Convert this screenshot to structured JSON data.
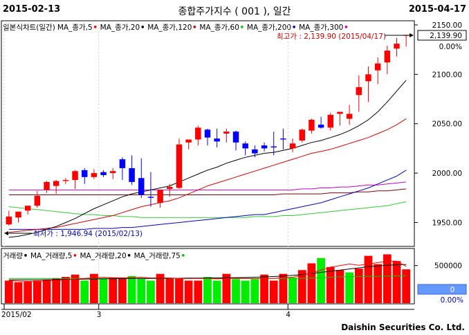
{
  "header": {
    "start_date": "2015-02-13",
    "title": "종합주가지수 ( 001 ), 일간",
    "end_date": "2015-04-17"
  },
  "price_legend": [
    {
      "label": "일본식차트(일간)",
      "color": "#000000",
      "marker": ""
    },
    {
      "label": "MA_종가,5",
      "color": "#ff0000",
      "marker": "•"
    },
    {
      "label": "MA_종가,20",
      "color": "#000000",
      "marker": "•"
    },
    {
      "label": "MA_종가,120",
      "color": "#cc0000",
      "marker": "•"
    },
    {
      "label": "MA_종가,60",
      "color": "#00cc00",
      "marker": "•"
    },
    {
      "label": "MA_종가,200",
      "color": "#0000cc",
      "marker": "•"
    },
    {
      "label": "MA_종가,300",
      "color": "#cc00cc",
      "marker": "•"
    }
  ],
  "volume_legend": [
    {
      "label": "거래량",
      "color": "#000000",
      "marker": "•"
    },
    {
      "label": "MA_거래량,5",
      "color": "#ff0000",
      "marker": "•"
    },
    {
      "label": "MA_거래량,20",
      "color": "#000000",
      "marker": "•"
    },
    {
      "label": "MA_거래량,75",
      "color": "#00cc00",
      "marker": "•"
    }
  ],
  "annotations": {
    "high": "최고가 : 2,139.90 (2015/04/17)",
    "low": "최저가 : 1,946.94 (2015/02/13)"
  },
  "right_axis": {
    "current_value": "2,139.90",
    "current_change": "0.00%",
    "volume_box_value": "0",
    "volume_box_change": "0.00%"
  },
  "x_axis_labels": [
    {
      "label": "2015/02",
      "index": 0
    },
    {
      "label": "3",
      "index": 10
    },
    {
      "label": "4",
      "index": 30
    }
  ],
  "footer": "Daishin Securities Co. Ltd.",
  "colors": {
    "up": "#ff0000",
    "down": "#0000ff",
    "vol_up": "#ff0000",
    "vol_down": "#00ee00"
  },
  "chart_data": [
    {
      "type": "candlestick",
      "title": "종합주가지수 ( 001 ), 일간",
      "ylim": [
        1930,
        2150
      ],
      "yticks": [
        1950,
        2000,
        2050,
        2100,
        2150
      ],
      "dates": [
        "2015/02/13",
        "2015/02/16",
        "2015/02/17",
        "2015/02/23",
        "2015/02/24",
        "2015/02/25",
        "2015/02/26",
        "2015/02/27",
        "2015/03/02",
        "2015/03/03",
        "2015/03/04",
        "2015/03/05",
        "2015/03/06",
        "2015/03/09",
        "2015/03/10",
        "2015/03/11",
        "2015/03/12",
        "2015/03/13",
        "2015/03/16",
        "2015/03/17",
        "2015/03/18",
        "2015/03/19",
        "2015/03/20",
        "2015/03/23",
        "2015/03/24",
        "2015/03/25",
        "2015/03/26",
        "2015/03/27",
        "2015/03/30",
        "2015/03/31",
        "2015/04/01",
        "2015/04/02",
        "2015/04/03",
        "2015/04/06",
        "2015/04/07",
        "2015/04/08",
        "2015/04/09",
        "2015/04/10",
        "2015/04/13",
        "2015/04/14",
        "2015/04/15",
        "2015/04/16",
        "2015/04/17"
      ],
      "open": [
        1948,
        1955,
        1962,
        1967,
        1983,
        1987,
        1992,
        1993,
        2003,
        1996,
        2001,
        2000,
        2014,
        2005,
        1995,
        1976,
        1970,
        1984,
        1985,
        2031,
        2034,
        2044,
        2035,
        2040,
        2042,
        2030,
        2024,
        2028,
        2027,
        2035,
        2025,
        2033,
        2043,
        2049,
        2046,
        2060,
        2055,
        2079,
        2093,
        2104,
        2112,
        2126,
        2139
      ],
      "high": [
        1962,
        1960,
        1966,
        1982,
        1992,
        1993,
        1995,
        2003,
        2005,
        2004,
        2003,
        2005,
        2016,
        2018,
        2015,
        2001,
        1983,
        1989,
        2035,
        2034,
        2048,
        2045,
        2045,
        2045,
        2043,
        2032,
        2028,
        2031,
        2042,
        2045,
        2035,
        2045,
        2055,
        2057,
        2061,
        2062,
        2069,
        2099,
        2108,
        2117,
        2129,
        2137,
        2140
      ],
      "low": [
        1946.94,
        1950,
        1958,
        1965,
        1980,
        1979,
        1989,
        1984,
        1989,
        1994,
        1996,
        1994,
        1993,
        1988,
        1975,
        1966,
        1965,
        1976,
        1984,
        2024,
        2028,
        2028,
        2026,
        2031,
        2023,
        2018,
        2016,
        2022,
        2018,
        2024,
        2021,
        2031,
        2040,
        2045,
        2043,
        2048,
        2049,
        2062,
        2072,
        2090,
        2100,
        2118,
        2128
      ],
      "close": [
        1956,
        1961,
        1967,
        1977,
        1991,
        1992,
        1993,
        2002,
        1996,
        2000,
        1998,
        2002,
        2005,
        1991,
        1978,
        1975,
        1983,
        1986,
        2029,
        2034,
        2046,
        2036,
        2032,
        2042,
        2031,
        2025,
        2020,
        2025,
        2026,
        2034,
        2030,
        2044,
        2054,
        2046,
        2059,
        2062,
        2060,
        2087,
        2100,
        2111,
        2124,
        2131,
        2139.9
      ],
      "ma5": [
        1940,
        1944,
        1949,
        1955,
        1962,
        1967,
        1974,
        1981,
        1987,
        1993,
        1996,
        1998,
        2000,
        2000,
        1998,
        1992,
        1986,
        1983,
        1987,
        1997,
        2008,
        2025,
        2035,
        2040,
        2040,
        2039,
        2034,
        2030,
        2028,
        2028,
        2029,
        2033,
        2037,
        2042,
        2047,
        2053,
        2056,
        2063,
        2073,
        2084,
        2096,
        2110,
        2121
      ],
      "ma20": [
        1935,
        1936,
        1938,
        1940,
        1943,
        1946,
        1950,
        1954,
        1959,
        1964,
        1968,
        1972,
        1976,
        1979,
        1981,
        1983,
        1985,
        1987,
        1991,
        1995,
        1999,
        2003,
        2006,
        2010,
        2013,
        2016,
        2018,
        2020,
        2021,
        2023,
        2025,
        2028,
        2031,
        2033,
        2036,
        2039,
        2043,
        2048,
        2054,
        2062,
        2072,
        2083,
        2094
      ],
      "ma120": [
        1940,
        1941,
        1942,
        1943,
        1944,
        1945,
        1947,
        1949,
        1951,
        1953,
        1955,
        1957,
        1960,
        1963,
        1966,
        1968,
        1970,
        1972,
        1975,
        1979,
        1983,
        1987,
        1990,
        1993,
        1996,
        1999,
        2002,
        2005,
        2008,
        2011,
        2014,
        2017,
        2020,
        2022,
        2024,
        2027,
        2030,
        2033,
        2036,
        2040,
        2044,
        2049,
        2055
      ],
      "ma60": [
        1966,
        1965,
        1964,
        1963,
        1962,
        1961,
        1960,
        1959,
        1958,
        1958,
        1957,
        1957,
        1956,
        1956,
        1955,
        1955,
        1955,
        1955,
        1955,
        1955,
        1955,
        1955,
        1955,
        1955,
        1955,
        1955,
        1956,
        1956,
        1956,
        1957,
        1957,
        1958,
        1959,
        1960,
        1961,
        1962,
        1963,
        1964,
        1965,
        1966,
        1967,
        1969,
        1971
      ],
      "ma200": [
        1943,
        1943,
        1943,
        1943,
        1943,
        1943,
        1943,
        1943,
        1943,
        1944,
        1944,
        1944,
        1945,
        1945,
        1946,
        1947,
        1948,
        1949,
        1950,
        1951,
        1952,
        1953,
        1954,
        1955,
        1956,
        1957,
        1958,
        1958,
        1960,
        1962,
        1964,
        1966,
        1968,
        1970,
        1973,
        1976,
        1979,
        1982,
        1985,
        1989,
        1993,
        1997,
        2003
      ],
      "ma300": [
        1983,
        1983,
        1983,
        1983,
        1983,
        1983,
        1983,
        1983,
        1983,
        1983,
        1983,
        1983,
        1983,
        1983,
        1983,
        1983,
        1983,
        1983,
        1983,
        1983,
        1983,
        1983,
        1983,
        1983,
        1983,
        1983,
        1983,
        1983,
        1983,
        1983,
        1983,
        1984,
        1984,
        1985,
        1985,
        1986,
        1986,
        1987,
        1988,
        1988,
        1989,
        1990,
        1991
      ],
      "ma_dark": [
        1978,
        1978,
        1978,
        1978,
        1978,
        1978,
        1978,
        1978,
        1978,
        1978,
        1978,
        1978,
        1978,
        1978,
        1978,
        1978,
        1978,
        1978,
        1978,
        1978,
        1978,
        1978,
        1978,
        1978,
        1978,
        1978,
        1978,
        1978,
        1978,
        1979,
        1979,
        1979,
        1979,
        1979,
        1980,
        1980,
        1980,
        1981,
        1981,
        1982,
        1982,
        1983,
        1984
      ]
    },
    {
      "type": "bar",
      "title": "거래량",
      "ylim": [
        0,
        700000
      ],
      "yticks": [
        500000
      ],
      "values": [
        300000,
        280000,
        285000,
        300000,
        310000,
        330000,
        350000,
        380000,
        300000,
        390000,
        325000,
        340000,
        330000,
        360000,
        330000,
        300000,
        390000,
        330000,
        330000,
        300000,
        300000,
        350000,
        300000,
        390000,
        320000,
        300000,
        320000,
        380000,
        300000,
        390000,
        340000,
        440000,
        530000,
        600000,
        480000,
        440000,
        410000,
        460000,
        630000,
        520000,
        650000,
        560000,
        450000
      ],
      "ma5": [
        300000,
        295000,
        290000,
        292000,
        295000,
        300000,
        310000,
        320000,
        330000,
        340000,
        345000,
        340000,
        337000,
        342000,
        345000,
        335000,
        336000,
        335000,
        330000,
        328000,
        330000,
        330000,
        322000,
        330000,
        332000,
        330000,
        326000,
        330000,
        330000,
        340000,
        345000,
        370000,
        400000,
        440000,
        480000,
        500000,
        520000,
        505000,
        520000,
        540000,
        560000,
        560000,
        490000
      ],
      "ma20": [
        310000,
        310000,
        310000,
        310000,
        312000,
        314000,
        316000,
        318000,
        320000,
        322000,
        324000,
        326000,
        327000,
        328000,
        329000,
        330000,
        331000,
        332000,
        332000,
        333000,
        334000,
        335000,
        336000,
        338000,
        340000,
        342000,
        345000,
        350000,
        355000,
        362000,
        370000,
        380000,
        395000,
        410000,
        425000,
        440000,
        455000,
        470000,
        485000,
        495000,
        505000,
        510000,
        515000
      ],
      "ma75": [
        330000,
        330000,
        330000,
        330000,
        330000,
        330000,
        330000,
        330000,
        330000,
        330000,
        330000,
        330000,
        330000,
        330000,
        330000,
        330000,
        330000,
        330000,
        330000,
        330000,
        330000,
        330000,
        330000,
        330000,
        330000,
        330000,
        330000,
        330000,
        330000,
        330000,
        330000,
        330000,
        335000,
        340000,
        345000,
        350000,
        352000,
        354000,
        356000,
        358000,
        360000,
        362000,
        365000
      ]
    }
  ]
}
